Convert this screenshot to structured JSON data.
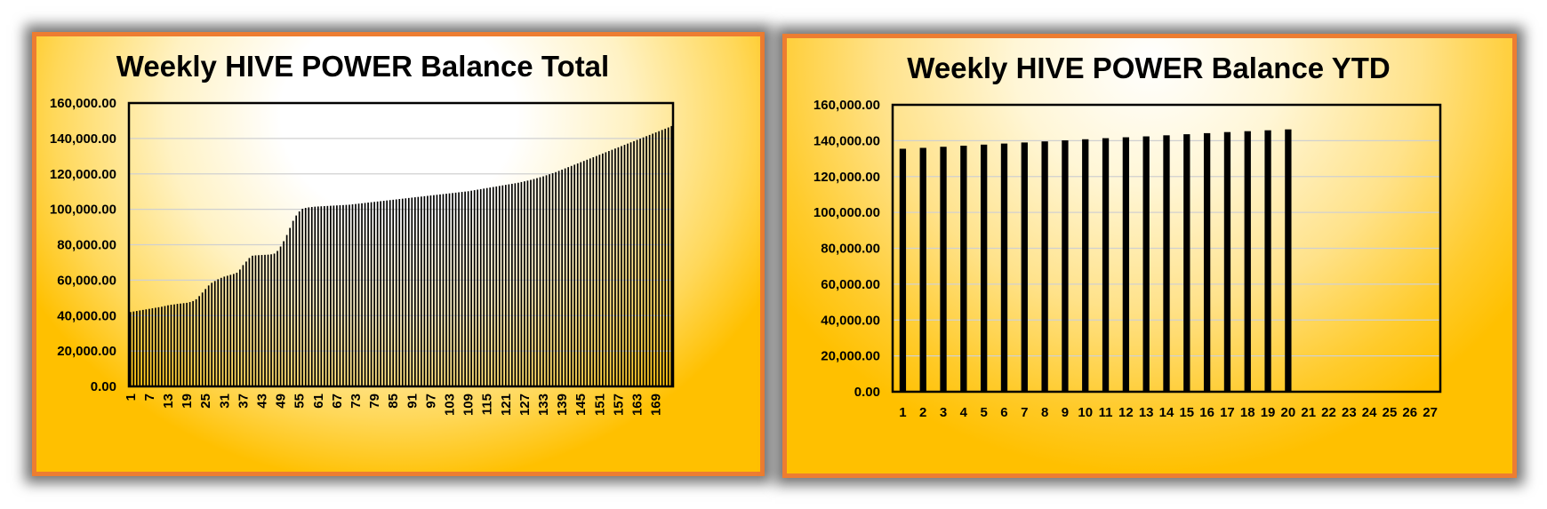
{
  "chart_data": [
    {
      "type": "bar",
      "title": "Weekly HIVE POWER Balance Total",
      "xlabel": "",
      "ylabel": "",
      "ylim": [
        0,
        160000
      ],
      "y_ticks": [
        "0.00",
        "20,000.00",
        "40,000.00",
        "60,000.00",
        "80,000.00",
        "100,000.00",
        "120,000.00",
        "140,000.00",
        "160,000.00"
      ],
      "x_tick_labels": [
        "1",
        "7",
        "13",
        "19",
        "25",
        "31",
        "37",
        "43",
        "49",
        "55",
        "61",
        "67",
        "73",
        "79",
        "85",
        "91",
        "97",
        "103",
        "109",
        "115",
        "121",
        "127",
        "133",
        "139",
        "145",
        "151",
        "157",
        "163",
        "169"
      ],
      "x_tick_every": 6,
      "grid": true,
      "legend": "none",
      "bar_color": "#000000",
      "categories_count": 174,
      "values": [
        42000,
        42300,
        42600,
        42900,
        43200,
        43500,
        43800,
        44100,
        44400,
        44700,
        45000,
        45400,
        45800,
        46100,
        46300,
        46600,
        46800,
        47000,
        47200,
        47600,
        48200,
        49200,
        51000,
        53000,
        55000,
        57000,
        58500,
        59500,
        60500,
        61300,
        62000,
        62500,
        63000,
        63500,
        64200,
        66000,
        68500,
        70500,
        72500,
        73800,
        74000,
        74100,
        74200,
        74300,
        74400,
        74600,
        75000,
        76500,
        79000,
        82000,
        85500,
        89500,
        93500,
        96500,
        98800,
        100300,
        100800,
        101100,
        101300,
        101500,
        101600,
        101700,
        101800,
        101900,
        102000,
        102100,
        102200,
        102300,
        102400,
        102500,
        102600,
        102800,
        103000,
        103200,
        103400,
        103600,
        103800,
        104000,
        104200,
        104400,
        104600,
        104800,
        105000,
        105200,
        105400,
        105600,
        105800,
        106000,
        106200,
        106400,
        106600,
        106800,
        107000,
        107200,
        107400,
        107600,
        107800,
        108000,
        108200,
        108400,
        108600,
        108800,
        109000,
        109200,
        109400,
        109600,
        109800,
        110000,
        110200,
        110500,
        110800,
        111100,
        111400,
        111700,
        112000,
        112300,
        112600,
        112900,
        113200,
        113500,
        113800,
        114100,
        114400,
        114700,
        115000,
        115400,
        115800,
        116200,
        116600,
        117100,
        117600,
        118100,
        118600,
        119200,
        119800,
        120400,
        121000,
        121700,
        122400,
        123100,
        123800,
        124500,
        125200,
        125900,
        126600,
        127300,
        128000,
        128700,
        129400,
        130100,
        130800,
        131500,
        132200,
        132900,
        133600,
        134300,
        135000,
        135700,
        136400,
        137100,
        137800,
        138500,
        139200,
        139900,
        140600,
        141300,
        142000,
        142700,
        143400,
        144100,
        144800,
        145500,
        146200,
        147000
      ]
    },
    {
      "type": "bar",
      "title": "Weekly HIVE POWER Balance YTD",
      "xlabel": "",
      "ylabel": "",
      "ylim": [
        0,
        160000
      ],
      "y_ticks": [
        "0.00",
        "20,000.00",
        "40,000.00",
        "60,000.00",
        "80,000.00",
        "100,000.00",
        "120,000.00",
        "140,000.00",
        "160,000.00"
      ],
      "categories": [
        "1",
        "2",
        "3",
        "4",
        "5",
        "6",
        "7",
        "8",
        "9",
        "10",
        "11",
        "12",
        "13",
        "14",
        "15",
        "16",
        "17",
        "18",
        "19",
        "20",
        "21",
        "22",
        "23",
        "24",
        "25",
        "26",
        "27"
      ],
      "values": [
        135500,
        136000,
        136600,
        137200,
        137800,
        138400,
        139000,
        139600,
        140200,
        140800,
        141400,
        141900,
        142400,
        143000,
        143600,
        144200,
        144800,
        145300,
        145800,
        146300,
        null,
        null,
        null,
        null,
        null,
        null,
        null
      ],
      "grid": true,
      "legend": "none",
      "bar_color": "#000000"
    }
  ]
}
